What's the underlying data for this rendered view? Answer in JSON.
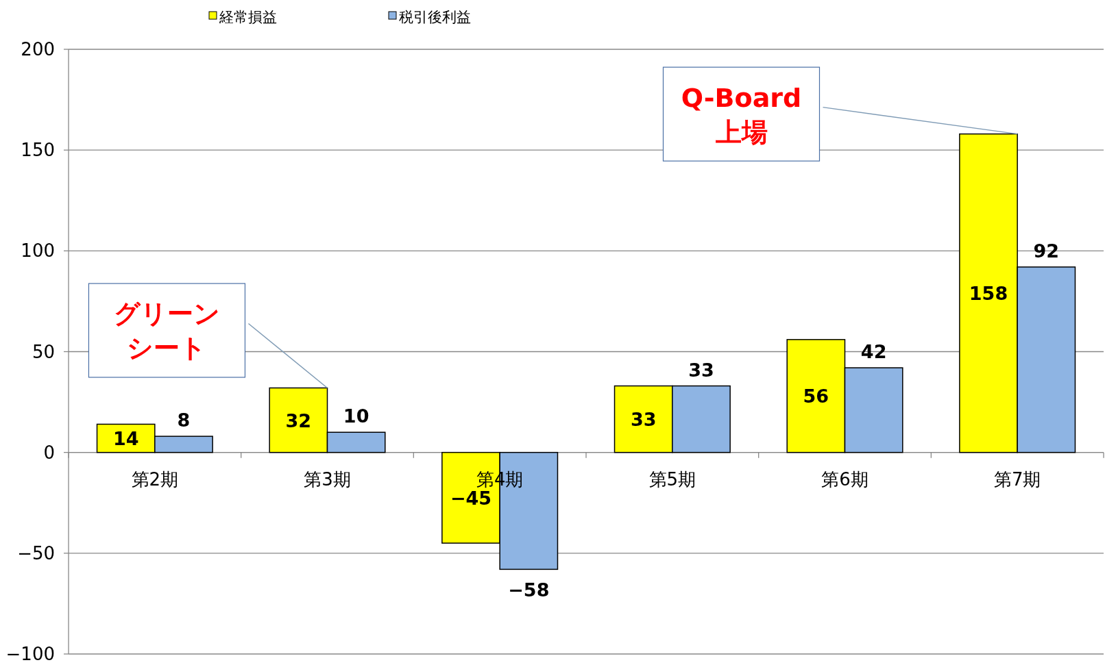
{
  "chart_data": {
    "type": "bar",
    "categories": [
      "第2期",
      "第3期",
      "第4期",
      "第5期",
      "第6期",
      "第7期"
    ],
    "series": [
      {
        "name": "経常損益",
        "color": "#ffff00",
        "values": [
          14,
          32,
          -45,
          33,
          56,
          158
        ]
      },
      {
        "name": "税引後利益",
        "color": "#8eb4e3",
        "values": [
          8,
          10,
          -58,
          33,
          42,
          92
        ]
      }
    ],
    "ylim": [
      -100,
      200
    ],
    "yticks": [
      -100,
      -50,
      0,
      50,
      100,
      150,
      200
    ],
    "grid": "y",
    "legend": "top left",
    "data_labels": true,
    "annotations": [
      {
        "text": "グリーンシート",
        "x": "第3期",
        "y": 32
      },
      {
        "text": "Q-Board 上場",
        "x": "第7期",
        "y": 158
      }
    ]
  }
}
